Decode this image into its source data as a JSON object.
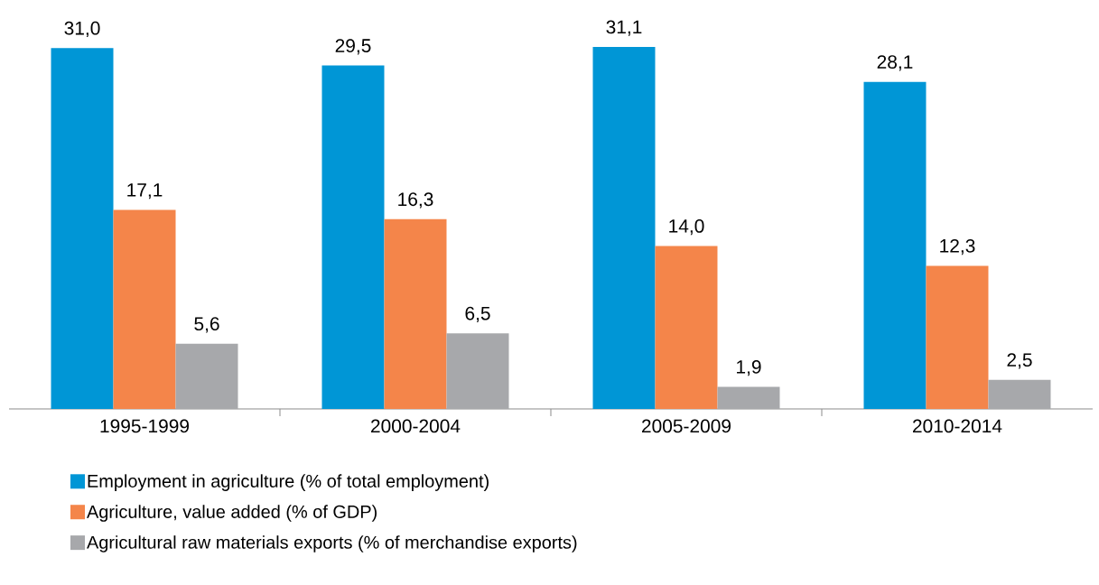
{
  "chart_data": {
    "type": "bar",
    "categories": [
      "1995-1999",
      "2000-2004",
      "2005-2009",
      "2010-2014"
    ],
    "series": [
      {
        "name": "Employment in agriculture (% of total employment)",
        "color": "#0096d6",
        "values": [
          31.0,
          29.5,
          31.1,
          28.1
        ],
        "value_labels": [
          "31,0",
          "29,5",
          "31,1",
          "28,1"
        ]
      },
      {
        "name": "Agriculture, value added (% of GDP)",
        "color": "#f4854a",
        "values": [
          17.1,
          16.3,
          14.0,
          12.3
        ],
        "value_labels": [
          "17,1",
          "16,3",
          "14,0",
          "12,3"
        ]
      },
      {
        "name": "Agricultural raw materials exports (% of merchandise exports)",
        "color": "#a7a8ab",
        "values": [
          5.6,
          6.5,
          1.9,
          2.5
        ],
        "value_labels": [
          "5,6",
          "6,5",
          "1,9",
          "2,5"
        ]
      }
    ],
    "ylim": [
      0,
      31.1
    ],
    "legend": "bottom"
  }
}
